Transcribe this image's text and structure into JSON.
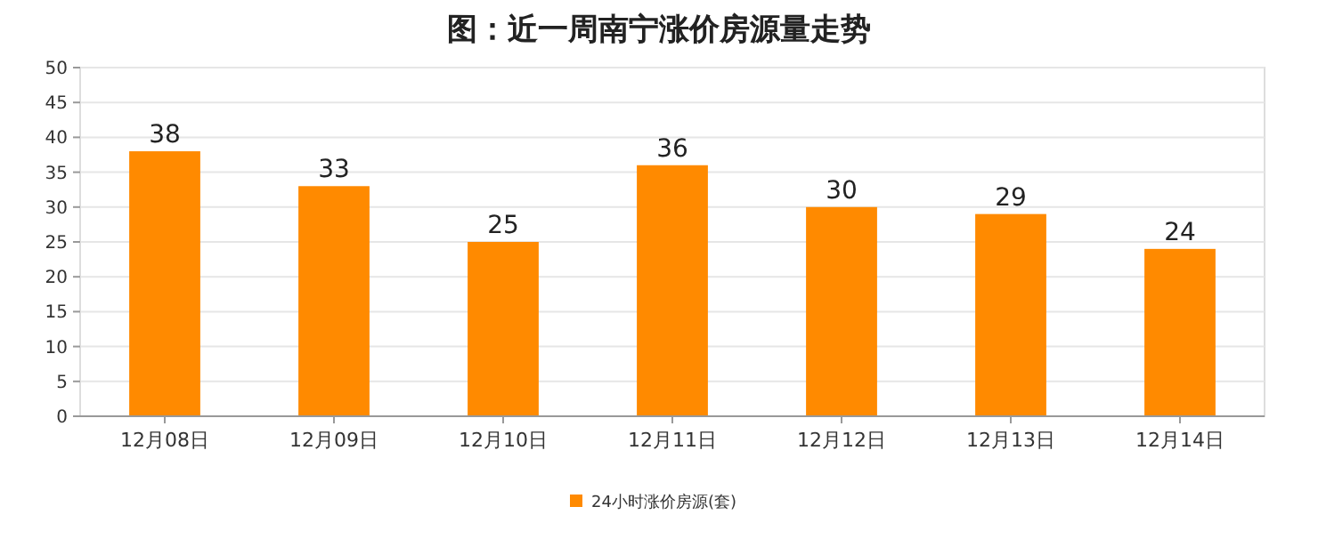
{
  "chart_data": {
    "type": "bar",
    "title": "图：近一周南宁涨价房源量走势",
    "categories": [
      "12月08日",
      "12月09日",
      "12月10日",
      "12月11日",
      "12月12日",
      "12月13日",
      "12月14日"
    ],
    "series": [
      {
        "name": "24小时涨价房源(套)",
        "color": "#ff8a00",
        "values": [
          38,
          33,
          25,
          36,
          30,
          29,
          24
        ]
      }
    ],
    "ylim": [
      0,
      50
    ],
    "yticks": [
      0,
      5,
      10,
      15,
      20,
      25,
      30,
      35,
      40,
      45,
      50
    ],
    "grid": "y",
    "legend": "bottom",
    "data_labels": true
  }
}
